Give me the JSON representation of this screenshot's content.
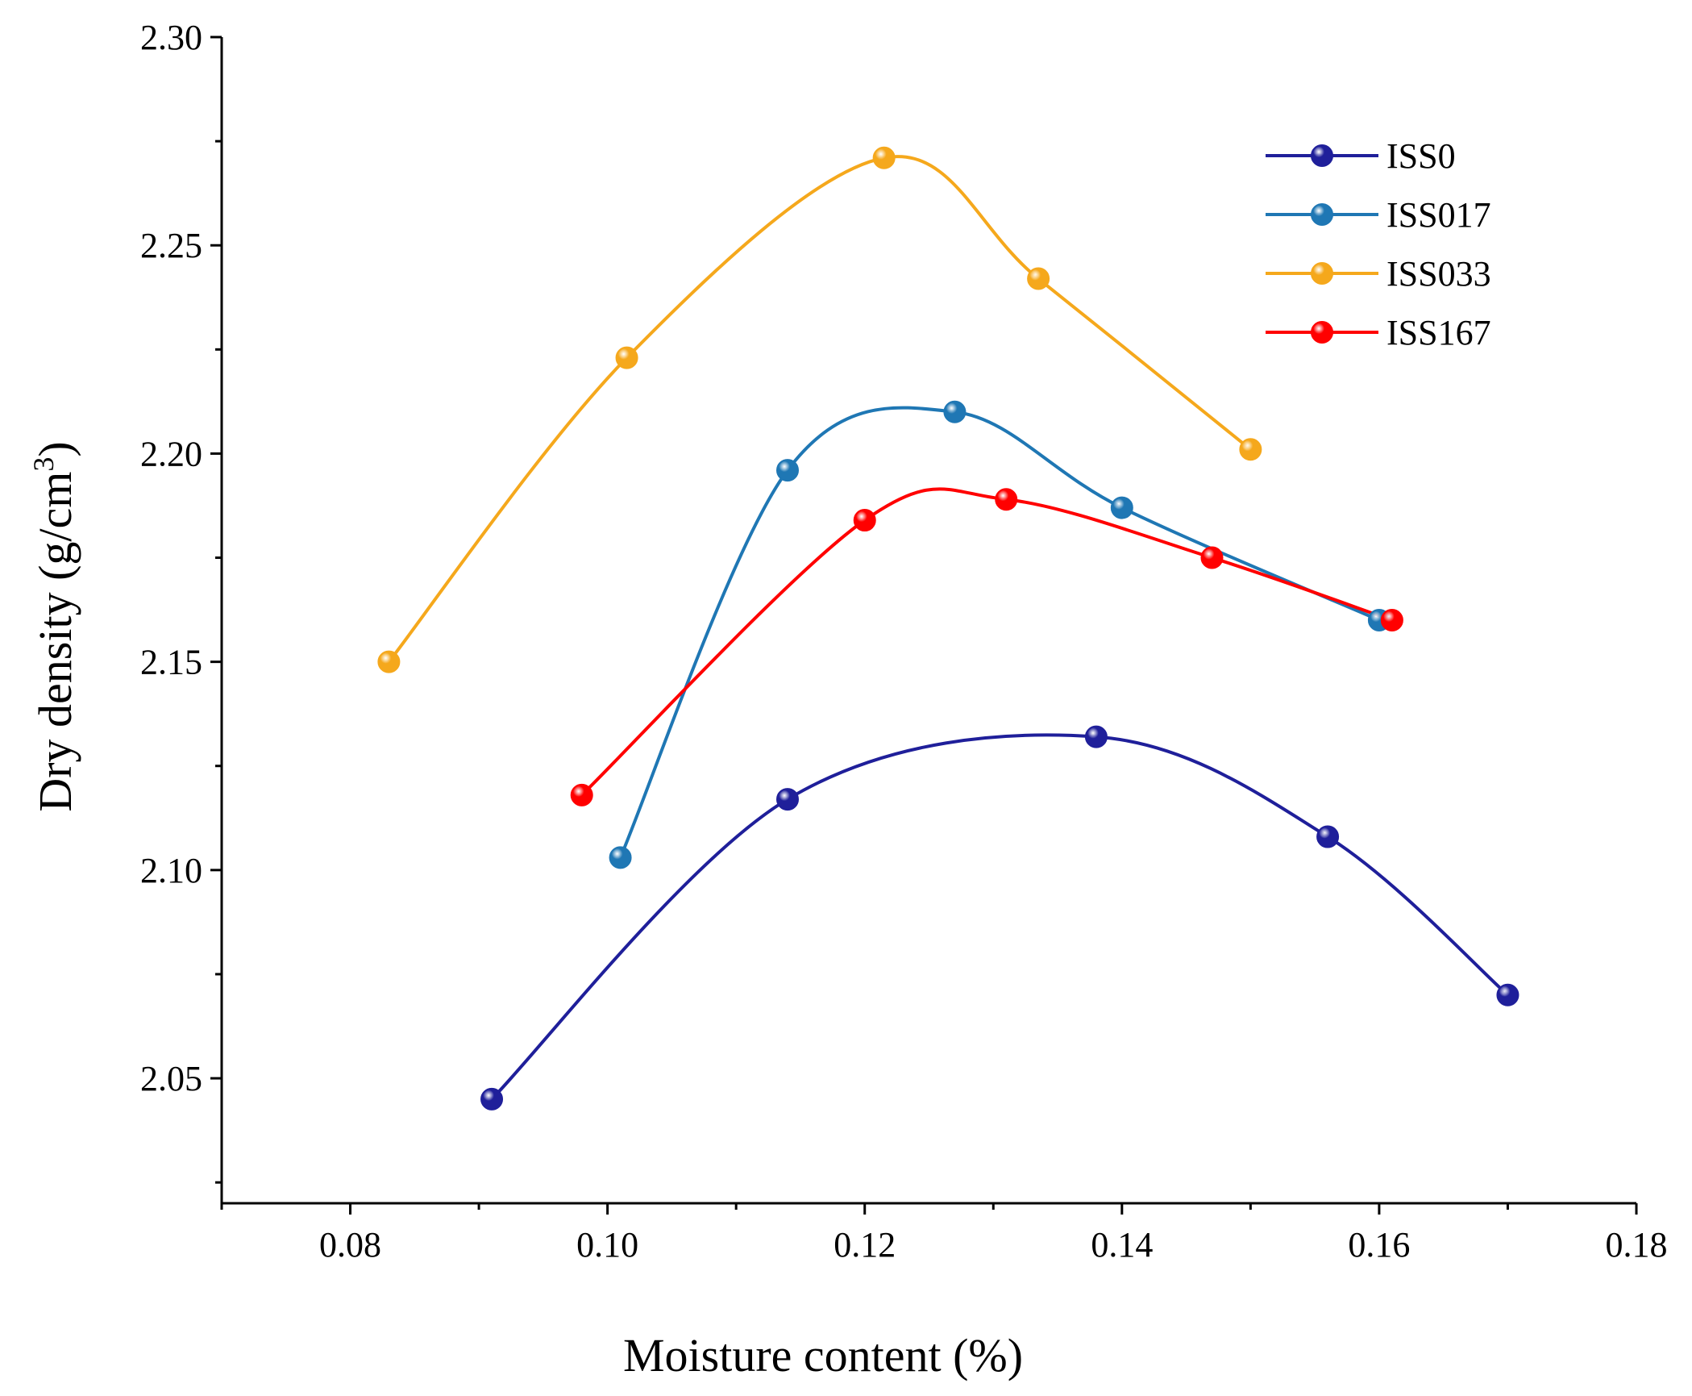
{
  "chart_data": {
    "type": "line",
    "title": "",
    "xlabel": "Moisture content (%)",
    "ylabel": "Dry density (g/cm",
    "ylabel_sup": "3",
    "ylabel_end": ")",
    "xlim": [
      0.07,
      0.18
    ],
    "ylim": [
      2.02,
      2.3
    ],
    "x_ticks": [
      0.08,
      0.1,
      0.12,
      0.14,
      0.16,
      0.18
    ],
    "x_tick_labels": [
      "0.08",
      "0.10",
      "0.12",
      "0.14",
      "0.16",
      "0.18"
    ],
    "y_ticks": [
      2.05,
      2.1,
      2.15,
      2.2,
      2.25,
      2.3
    ],
    "y_tick_labels": [
      "2.05",
      "2.10",
      "2.15",
      "2.20",
      "2.25",
      "2.30"
    ],
    "grid": false,
    "legend_position": "top-right",
    "series": [
      {
        "name": "ISS0",
        "color": "#1f1f9a",
        "x": [
          0.091,
          0.114,
          0.138,
          0.156,
          0.17
        ],
        "y": [
          2.045,
          2.117,
          2.132,
          2.108,
          2.07
        ]
      },
      {
        "name": "ISS017",
        "color": "#1f77b4",
        "x": [
          0.101,
          0.114,
          0.127,
          0.14,
          0.16
        ],
        "y": [
          2.103,
          2.196,
          2.21,
          2.187,
          2.16
        ]
      },
      {
        "name": "ISS033",
        "color": "#f5a81c",
        "x": [
          0.083,
          0.1015,
          0.1215,
          0.1335,
          0.15
        ],
        "y": [
          2.15,
          2.223,
          2.271,
          2.242,
          2.201
        ]
      },
      {
        "name": "ISS167",
        "color": "#ff0000",
        "x": [
          0.098,
          0.12,
          0.131,
          0.147,
          0.161
        ],
        "y": [
          2.118,
          2.184,
          2.189,
          2.175,
          2.16
        ]
      }
    ]
  }
}
